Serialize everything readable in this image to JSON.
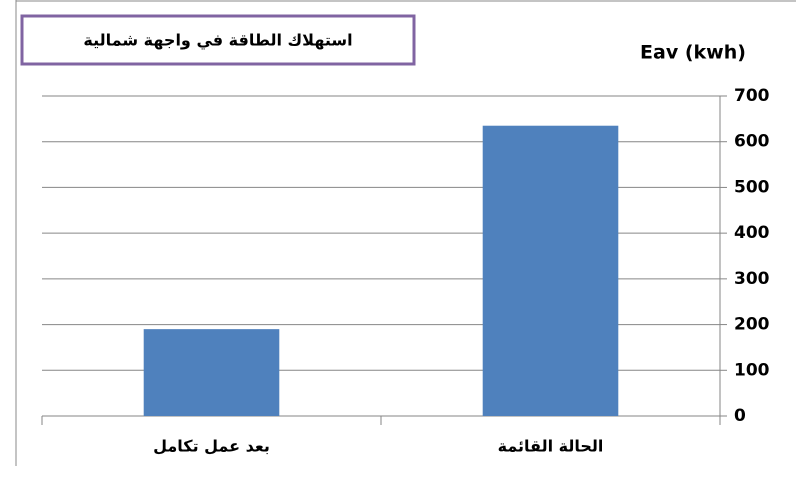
{
  "chart_data": {
    "type": "bar",
    "title": "استهلاك الطاقة في واجهة شمالية",
    "y_axis_label": "Eav (kwh)",
    "categories": [
      "بعد عمل تكامل",
      "الحالة القائمة"
    ],
    "values": [
      190,
      635
    ],
    "color": "#4f81bd",
    "ylim": [
      0,
      700
    ],
    "yticks": [
      0,
      100,
      200,
      300,
      400,
      500,
      600,
      700
    ],
    "grid": true,
    "y_axis_side": "right"
  }
}
